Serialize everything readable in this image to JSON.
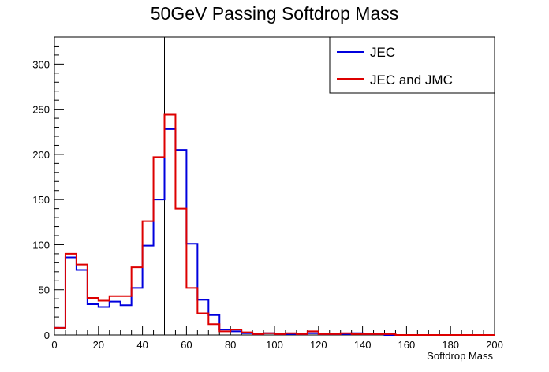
{
  "chart_data": {
    "type": "line",
    "title": "50GeV Passing Softdrop Mass",
    "xlabel": "Softdrop Mass",
    "ylabel": "",
    "xlim": [
      0,
      200
    ],
    "ylim": [
      0,
      330
    ],
    "xticks": [
      0,
      20,
      40,
      60,
      80,
      100,
      120,
      140,
      160,
      180,
      200
    ],
    "yticks": [
      0,
      50,
      100,
      150,
      200,
      250,
      300
    ],
    "bin_width": 5,
    "vertical_line_x": 50,
    "legend_position": "top-right",
    "series": [
      {
        "name": "JEC",
        "color": "#0000dd",
        "values": [
          8,
          86,
          72,
          34,
          31,
          37,
          33,
          52,
          99,
          150,
          228,
          205,
          101,
          39,
          22,
          6,
          4,
          2,
          1,
          2,
          1,
          1,
          1,
          2,
          1,
          1,
          1,
          2,
          1,
          1,
          0,
          0,
          0,
          0,
          0,
          0,
          0,
          0,
          0,
          0
        ]
      },
      {
        "name": "JEC and JMC",
        "color": "#dd0000",
        "values": [
          8,
          90,
          78,
          41,
          38,
          43,
          43,
          75,
          126,
          197,
          244,
          140,
          52,
          24,
          12,
          4,
          6,
          3,
          1,
          2,
          1,
          2,
          1,
          4,
          1,
          1,
          2,
          1,
          1,
          1,
          1,
          0,
          0,
          0,
          0,
          0,
          0,
          0,
          0,
          0
        ]
      }
    ]
  }
}
